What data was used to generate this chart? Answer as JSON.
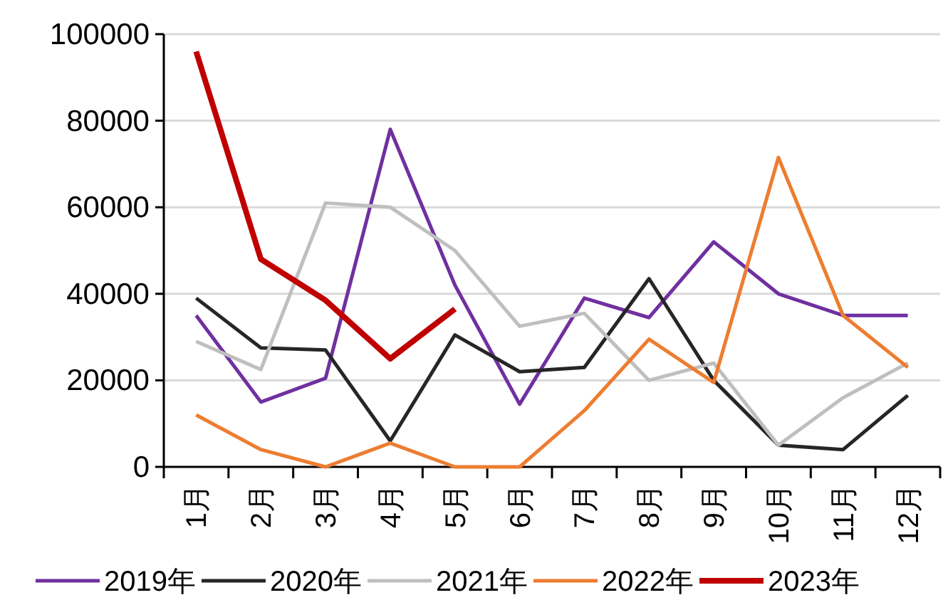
{
  "chart_data": {
    "type": "line",
    "categories": [
      "1月",
      "2月",
      "3月",
      "4月",
      "5月",
      "6月",
      "7月",
      "8月",
      "9月",
      "10月",
      "11月",
      "12月"
    ],
    "ylim": [
      0,
      100000
    ],
    "yticks": [
      0,
      20000,
      40000,
      60000,
      80000,
      100000
    ],
    "grid": "y",
    "legend": "bottom",
    "marker": "none",
    "line_style": "solid",
    "series": [
      {
        "name": "2019年",
        "color": "#7030a0",
        "values": [
          35000,
          15000,
          20500,
          78000,
          42000,
          14500,
          39000,
          34500,
          52000,
          40000,
          35000,
          35000
        ]
      },
      {
        "name": "2020年",
        "color": "#262626",
        "values": [
          39000,
          27500,
          27000,
          6000,
          30500,
          22000,
          23000,
          43500,
          20000,
          5000,
          4000,
          16500
        ]
      },
      {
        "name": "2021年",
        "color": "#bfbfbf",
        "values": [
          29000,
          22500,
          61000,
          60000,
          50000,
          32500,
          35500,
          20000,
          24000,
          5000,
          16000,
          24000
        ]
      },
      {
        "name": "2022年",
        "color": "#ed7d31",
        "values": [
          12000,
          4000,
          0,
          5500,
          0,
          0,
          13000,
          29500,
          19500,
          71500,
          35000,
          23000
        ]
      },
      {
        "name": "2023年",
        "color": "#c00000",
        "values": [
          96000,
          48000,
          38500,
          25000,
          36500,
          null,
          null,
          null,
          null,
          null,
          null,
          null
        ]
      }
    ]
  }
}
